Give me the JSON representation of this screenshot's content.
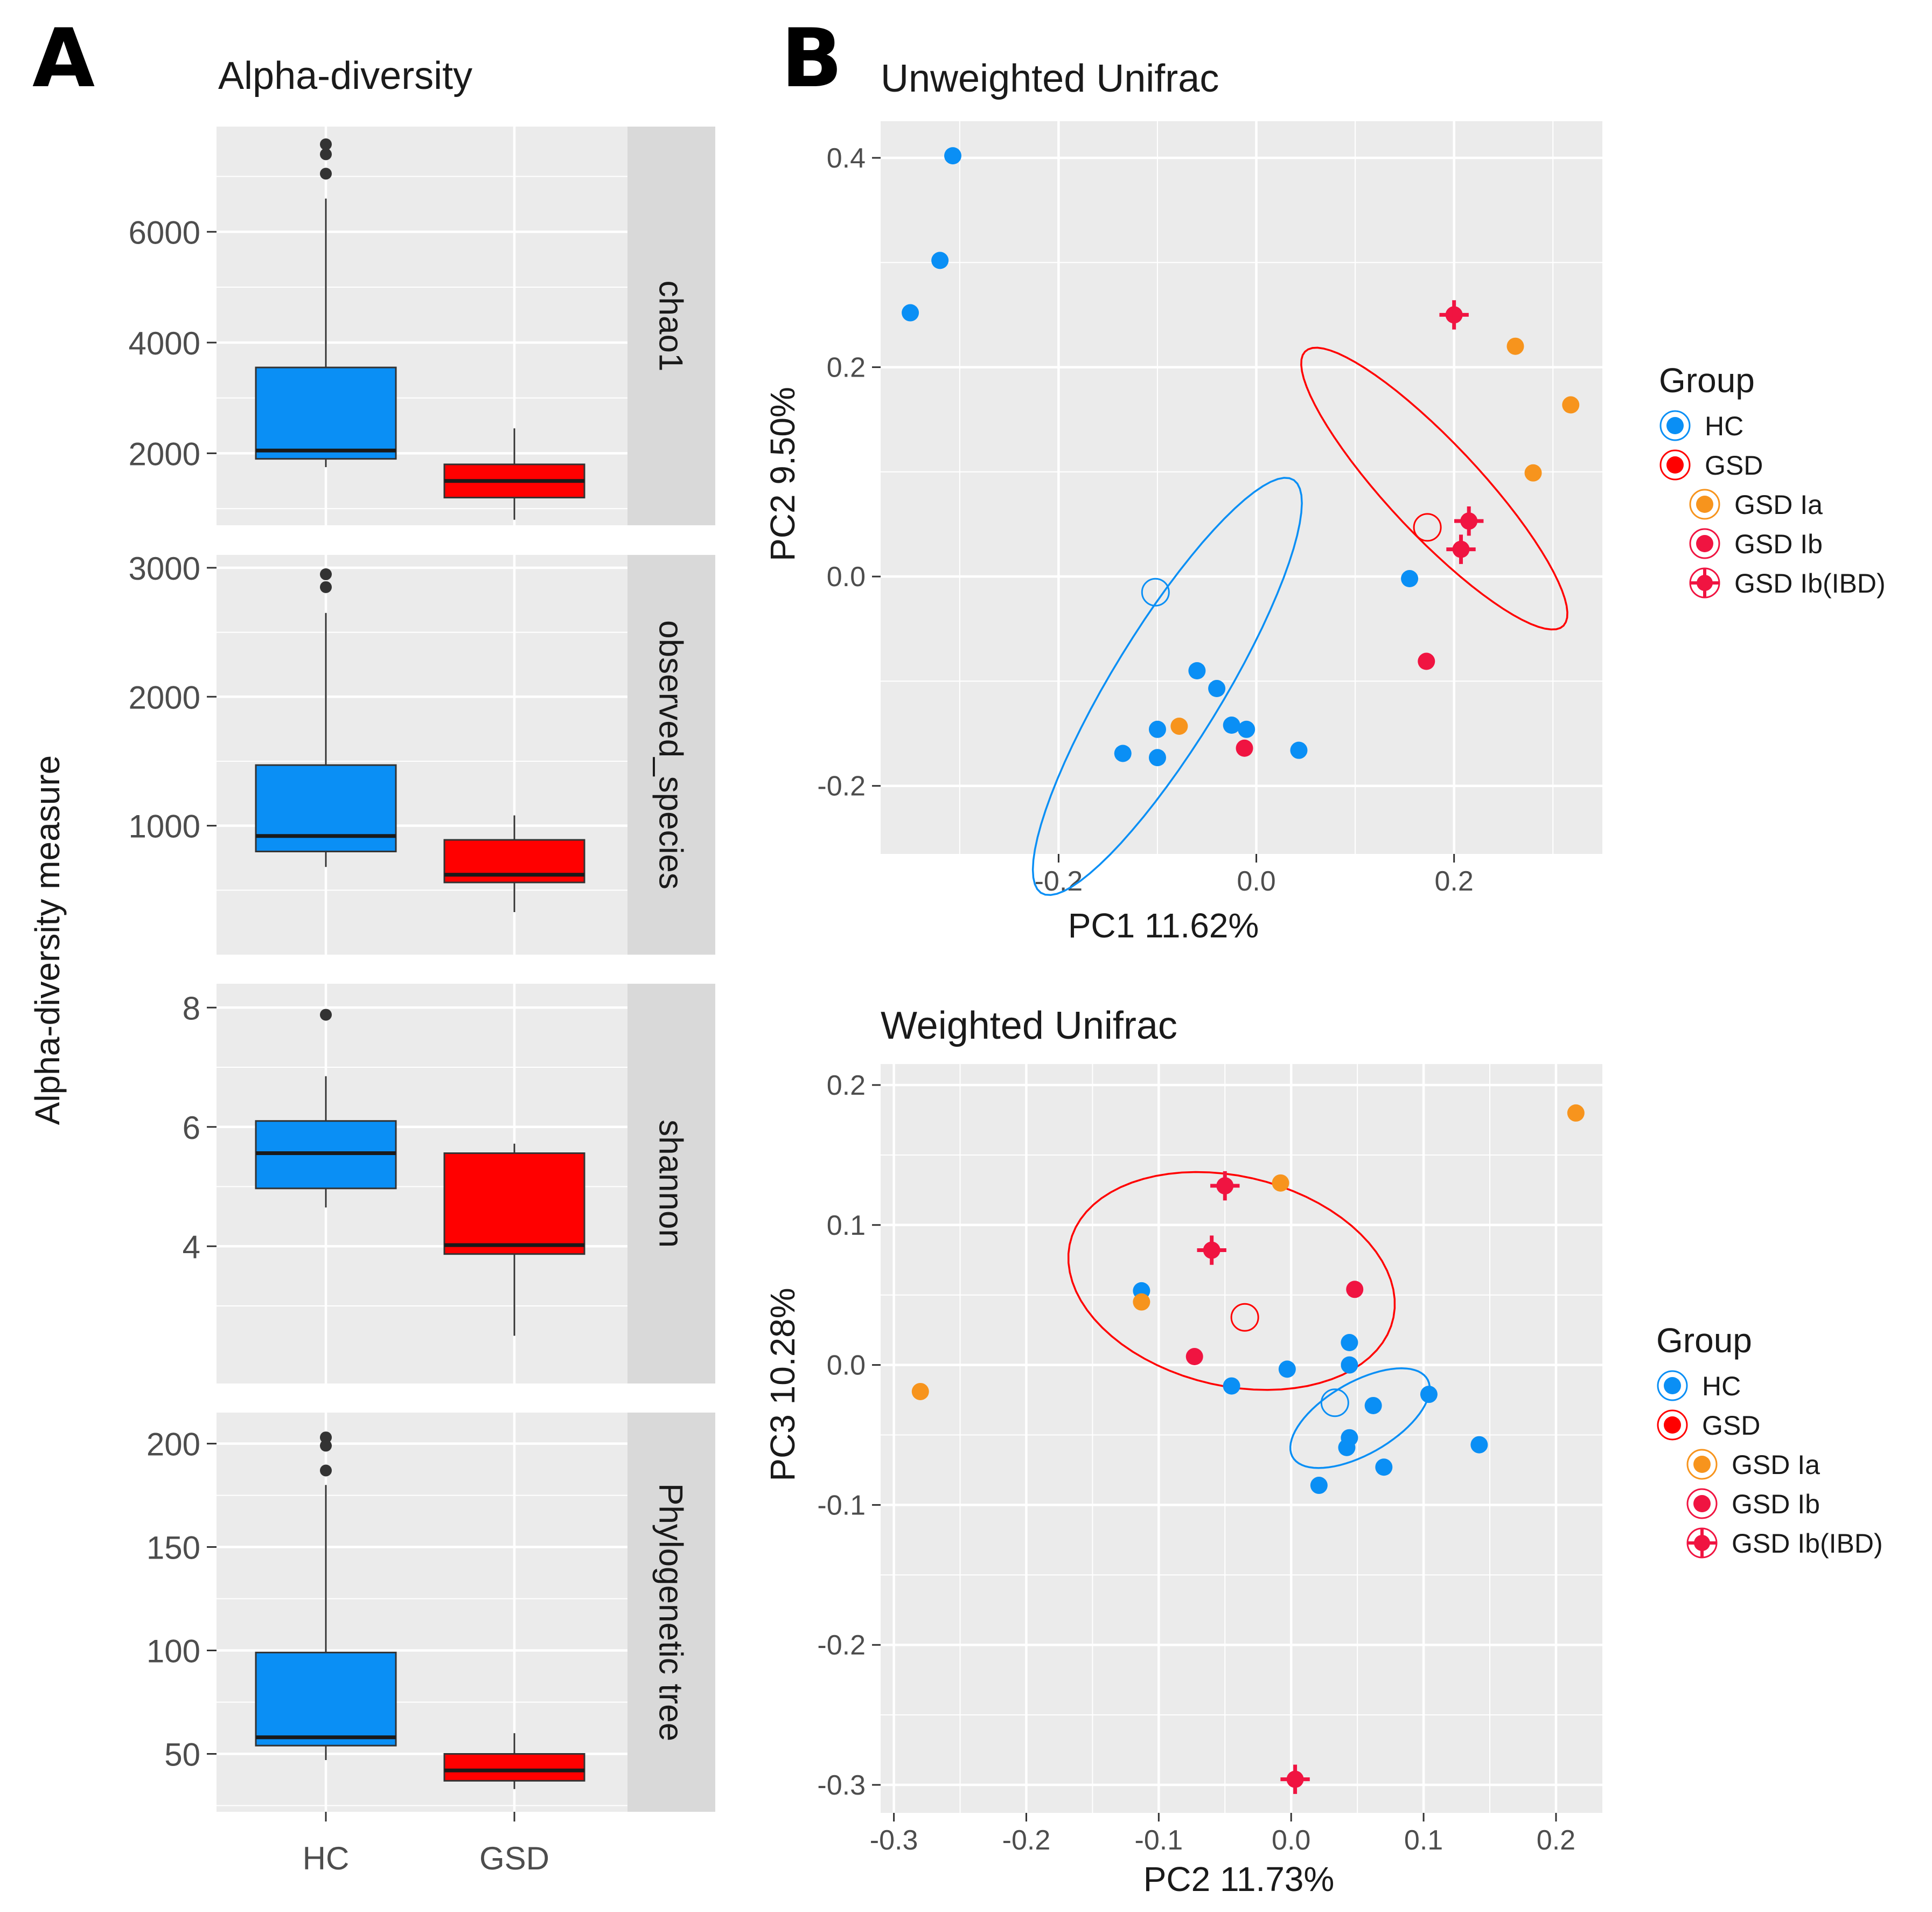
{
  "panels": {
    "a_letter": "A",
    "b_letter": "B"
  },
  "colors": {
    "panel_bg": "#ebebeb",
    "strip_bg": "#d9d9d9",
    "grid": "#ffffff",
    "hc": "#0a8ff5",
    "gsd": "#ff0000",
    "gsd_ia": "#f7941d",
    "gsd_ib": "#f01441",
    "gsd_ib_ibd": "#f01441",
    "hc_box": "#0a8ff5",
    "gsd_box": "#ff0000"
  },
  "chart_data": [
    {
      "type": "box",
      "id": "alpha",
      "title": "Alpha-diversity",
      "ylabel": "Alpha-diversity measure",
      "categories": [
        "HC",
        "GSD"
      ],
      "facets": [
        {
          "label": "chao1",
          "ylim": [
            700,
            7900
          ],
          "ticks": [
            2000,
            4000,
            6000
          ],
          "tick_labels": [
            "2000",
            "4000",
            "6000"
          ],
          "boxes": [
            {
              "category": "HC",
              "whisker_low": 1750,
              "q1": 1900,
              "median": 2050,
              "q3": 3550,
              "whisker_high": 6600,
              "outliers": [
                7050,
                7400,
                7580
              ]
            },
            {
              "category": "GSD",
              "whisker_low": 800,
              "q1": 1200,
              "median": 1500,
              "q3": 1800,
              "whisker_high": 2450,
              "outliers": []
            }
          ]
        },
        {
          "label": "observed_species",
          "ylim": [
            0,
            3100
          ],
          "ticks": [
            1000,
            2000,
            3000
          ],
          "tick_labels": [
            "1000",
            "2000",
            "3000"
          ],
          "boxes": [
            {
              "category": "HC",
              "whisker_low": 680,
              "q1": 800,
              "median": 920,
              "q3": 1470,
              "whisker_high": 2650,
              "outliers": [
                2850,
                2950
              ]
            },
            {
              "category": "GSD",
              "whisker_low": 330,
              "q1": 560,
              "median": 620,
              "q3": 890,
              "whisker_high": 1080,
              "outliers": []
            }
          ]
        },
        {
          "label": "shannon",
          "ylim": [
            1.7,
            8.4
          ],
          "ticks": [
            4,
            6,
            8
          ],
          "tick_labels": [
            "4",
            "6",
            "8"
          ],
          "boxes": [
            {
              "category": "HC",
              "whisker_low": 4.65,
              "q1": 4.97,
              "median": 5.56,
              "q3": 6.1,
              "whisker_high": 6.85,
              "outliers": [
                7.88
              ]
            },
            {
              "category": "GSD",
              "whisker_low": 2.5,
              "q1": 3.87,
              "median": 4.02,
              "q3": 5.56,
              "whisker_high": 5.72,
              "outliers": []
            }
          ]
        },
        {
          "label": "Phylogenetic tree",
          "ylim": [
            22,
            215
          ],
          "ticks": [
            50,
            100,
            150,
            200
          ],
          "tick_labels": [
            "50",
            "100",
            "150",
            "200"
          ],
          "boxes": [
            {
              "category": "HC",
              "whisker_low": 47,
              "q1": 54,
              "median": 58,
              "q3": 99,
              "whisker_high": 180,
              "outliers": [
                187,
                199,
                203
              ]
            },
            {
              "category": "GSD",
              "whisker_low": 33,
              "q1": 37,
              "median": 42,
              "q3": 50,
              "whisker_high": 60,
              "outliers": []
            }
          ]
        }
      ]
    },
    {
      "type": "scatter",
      "id": "unweighted",
      "title": "Unweighted Unifrac",
      "xlabel": "PC1 11.62%",
      "ylabel": "PC2 9.50%",
      "xlim": [
        -0.38,
        0.35
      ],
      "ylim": [
        -0.265,
        0.435
      ],
      "xticks": [
        -0.2,
        0.0,
        0.2
      ],
      "xtick_labels": [
        "-0.2",
        "0.0",
        "0.2"
      ],
      "yticks": [
        -0.2,
        0.0,
        0.2,
        0.4
      ],
      "ytick_labels": [
        "-0.2",
        "0.0",
        "0.2",
        "0.4"
      ],
      "points": [
        {
          "group": "HC",
          "x": -0.307,
          "y": 0.402
        },
        {
          "group": "HC",
          "x": -0.32,
          "y": 0.302
        },
        {
          "group": "HC",
          "x": -0.35,
          "y": 0.252
        },
        {
          "group": "HC",
          "x": -0.06,
          "y": -0.09
        },
        {
          "group": "HC",
          "x": -0.04,
          "y": -0.107
        },
        {
          "group": "HC",
          "x": -0.025,
          "y": -0.142
        },
        {
          "group": "HC",
          "x": -0.01,
          "y": -0.146
        },
        {
          "group": "HC",
          "x": -0.1,
          "y": -0.146
        },
        {
          "group": "HC",
          "x": -0.135,
          "y": -0.169
        },
        {
          "group": "HC",
          "x": -0.1,
          "y": -0.173
        },
        {
          "group": "HC",
          "x": 0.043,
          "y": -0.166
        },
        {
          "group": "HC",
          "x": 0.155,
          "y": -0.002
        },
        {
          "group": "GSD Ia",
          "x": -0.078,
          "y": -0.143
        },
        {
          "group": "GSD Ia",
          "x": 0.262,
          "y": 0.22
        },
        {
          "group": "GSD Ia",
          "x": 0.318,
          "y": 0.164
        },
        {
          "group": "GSD Ia",
          "x": 0.28,
          "y": 0.099
        },
        {
          "group": "GSD Ib",
          "x": -0.012,
          "y": -0.164
        },
        {
          "group": "GSD Ib",
          "x": 0.172,
          "y": -0.081
        },
        {
          "group": "GSD Ib(IBD)",
          "x": 0.2,
          "y": 0.25
        },
        {
          "group": "GSD Ib(IBD)",
          "x": 0.215,
          "y": 0.053
        },
        {
          "group": "GSD Ib(IBD)",
          "x": 0.207,
          "y": 0.026
        }
      ],
      "centroids": [
        {
          "group": "HC",
          "x": -0.102,
          "y": -0.015
        },
        {
          "group": "GSD",
          "x": 0.173,
          "y": 0.047
        }
      ],
      "ellipses": [
        {
          "group": "HC",
          "cx": -0.09,
          "cy": -0.105,
          "rx": 0.235,
          "ry": 0.055,
          "angle_deg": 57
        },
        {
          "group": "GSD",
          "cx": 0.18,
          "cy": 0.084,
          "rx": 0.185,
          "ry": 0.045,
          "angle_deg": -45
        }
      ],
      "legend": {
        "title": "Group",
        "entries": [
          "HC",
          "GSD",
          "GSD Ia",
          "GSD Ib",
          "GSD Ib(IBD)"
        ]
      }
    },
    {
      "type": "scatter",
      "id": "weighted",
      "title": "Weighted Unifrac",
      "xlabel": "PC2 11.73%",
      "ylabel": "PC3 10.28%",
      "xlim": [
        -0.31,
        0.235
      ],
      "ylim": [
        -0.32,
        0.215
      ],
      "xticks": [
        -0.3,
        -0.2,
        -0.1,
        0.0,
        0.1,
        0.2
      ],
      "xtick_labels": [
        "-0.3",
        "-0.2",
        "-0.1",
        "0.0",
        "0.1",
        "0.2"
      ],
      "yticks": [
        -0.3,
        -0.2,
        -0.1,
        0.0,
        0.1,
        0.2
      ],
      "ytick_labels": [
        "-0.3",
        "-0.2",
        "-0.1",
        "0.0",
        "0.1",
        "0.2"
      ],
      "points": [
        {
          "group": "HC",
          "x": -0.113,
          "y": 0.053
        },
        {
          "group": "HC",
          "x": 0.044,
          "y": 0.016
        },
        {
          "group": "HC",
          "x": 0.044,
          "y": 0.0
        },
        {
          "group": "HC",
          "x": -0.003,
          "y": -0.003
        },
        {
          "group": "HC",
          "x": -0.045,
          "y": -0.015
        },
        {
          "group": "HC",
          "x": 0.062,
          "y": -0.029
        },
        {
          "group": "HC",
          "x": 0.104,
          "y": -0.021
        },
        {
          "group": "HC",
          "x": 0.044,
          "y": -0.052
        },
        {
          "group": "HC",
          "x": 0.042,
          "y": -0.059
        },
        {
          "group": "HC",
          "x": 0.142,
          "y": -0.057
        },
        {
          "group": "HC",
          "x": 0.07,
          "y": -0.073
        },
        {
          "group": "HC",
          "x": 0.021,
          "y": -0.086
        },
        {
          "group": "GSD Ia",
          "x": -0.008,
          "y": 0.13
        },
        {
          "group": "GSD Ia",
          "x": -0.113,
          "y": 0.045
        },
        {
          "group": "GSD Ia",
          "x": -0.28,
          "y": -0.019
        },
        {
          "group": "GSD Ia",
          "x": 0.215,
          "y": 0.18
        },
        {
          "group": "GSD Ib",
          "x": 0.048,
          "y": 0.054
        },
        {
          "group": "GSD Ib",
          "x": -0.073,
          "y": 0.006
        },
        {
          "group": "GSD Ib(IBD)",
          "x": -0.05,
          "y": 0.128
        },
        {
          "group": "GSD Ib(IBD)",
          "x": -0.06,
          "y": 0.082
        },
        {
          "group": "GSD Ib(IBD)",
          "x": 0.003,
          "y": -0.296
        }
      ],
      "centroids": [
        {
          "group": "HC",
          "x": 0.033,
          "y": -0.027
        },
        {
          "group": "GSD",
          "x": -0.035,
          "y": 0.034
        }
      ],
      "ellipses": [
        {
          "group": "HC",
          "cx": 0.052,
          "cy": -0.038,
          "rx": 0.058,
          "ry": 0.026,
          "angle_deg": 28
        },
        {
          "group": "GSD",
          "cx": -0.045,
          "cy": 0.06,
          "rx": 0.125,
          "ry": 0.075,
          "angle_deg": -12
        }
      ],
      "legend": {
        "title": "Group",
        "entries": [
          "HC",
          "GSD",
          "GSD Ia",
          "GSD Ib",
          "GSD Ib(IBD)"
        ]
      }
    }
  ]
}
